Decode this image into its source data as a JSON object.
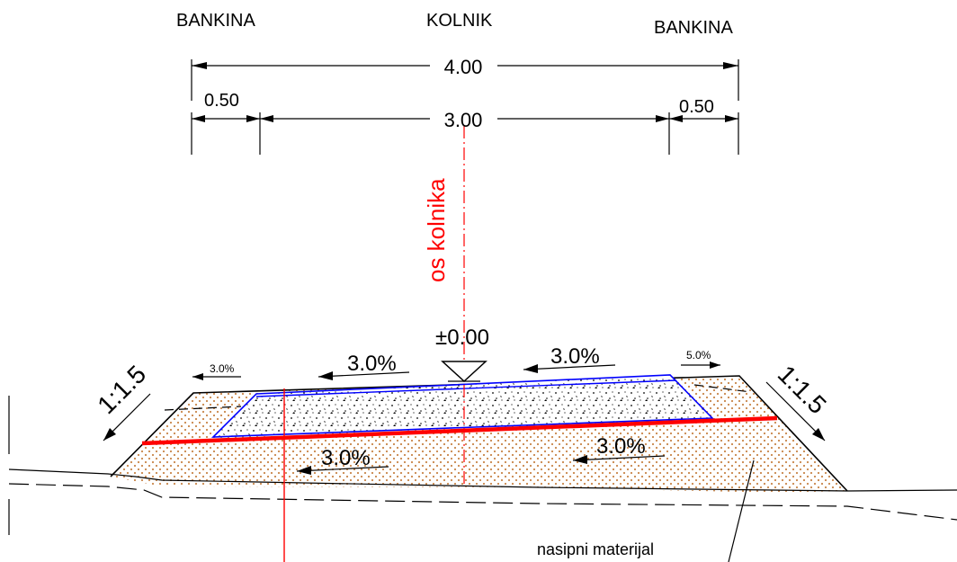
{
  "header": {
    "left_shoulder": "BANKINA",
    "carriageway": "KOLNIK",
    "right_shoulder": "BANKINA"
  },
  "dimensions": {
    "total_width": "4.00",
    "carriageway_width": "3.00",
    "left_shoulder_width": "0.50",
    "right_shoulder_width": "0.50"
  },
  "axis": {
    "label": "os kolnika",
    "elevation": "±0.00"
  },
  "slopes": {
    "left_shoulder_slope": "3.0%",
    "right_shoulder_slope": "5.0%",
    "carriageway_left": "3.0%",
    "carriageway_right": "3.0%",
    "subgrade_left": "3.0%",
    "subgrade_right": "3.0%",
    "embankment_left": "1:1.5",
    "embankment_right": "1:1.5"
  },
  "annotations": {
    "fill_material": "nasipni materijal"
  },
  "colors": {
    "axis": "#ff0000",
    "pavement_outline": "#0000ff",
    "subgrade_line": "#ff0000",
    "fill_hatch": "#c8864a"
  }
}
